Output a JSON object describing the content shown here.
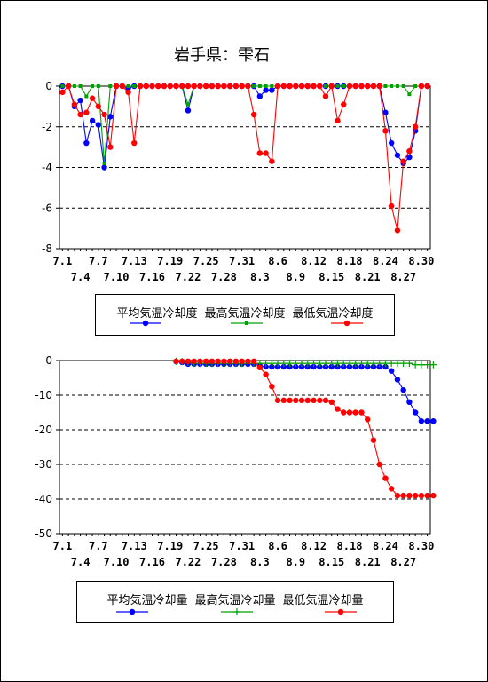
{
  "title": "岩手県：雫石",
  "chart_data": [
    {
      "type": "line",
      "title": "",
      "ylim": [
        -8,
        0
      ],
      "yticks": [
        0,
        -2,
        -4,
        -6,
        -8
      ],
      "grid": "dashed horizontal",
      "x_tick_labels_row1": [
        "7.1",
        "7.7",
        "7.13",
        "7.19",
        "7.25",
        "7.31",
        "8.6",
        "8.12",
        "8.18",
        "8.24",
        "8.30"
      ],
      "x_tick_labels_row2": [
        "7.4",
        "7.10",
        "7.16",
        "7.22",
        "7.28",
        "8.3",
        "8.9",
        "8.15",
        "8.21",
        "8.27"
      ],
      "legend_position": "bottom",
      "series": [
        {
          "name": "平均気温冷却度",
          "color": "#0000ff",
          "marker": "circle",
          "values": [
            0,
            0,
            -1.0,
            -0.7,
            -2.8,
            -1.7,
            -1.9,
            -4.0,
            -1.5,
            0,
            0,
            -0.1,
            0,
            0,
            0,
            0,
            0,
            0,
            0,
            0,
            0,
            -1.2,
            0,
            0,
            0,
            0,
            0,
            0,
            0,
            0,
            0,
            0,
            0,
            -0.5,
            -0.2,
            -0.2,
            0,
            0,
            0,
            0,
            0,
            0,
            0,
            0,
            0,
            0,
            0,
            0,
            0,
            0,
            0,
            0,
            0,
            0,
            -1.3,
            -2.8,
            -3.4,
            -3.8,
            -3.5,
            -2.2,
            0,
            0
          ]
        },
        {
          "name": "最高気温冷却度",
          "color": "#00a000",
          "marker": "square",
          "values": [
            0,
            0,
            0,
            0,
            -0.5,
            0,
            0,
            -3.8,
            0,
            0,
            0,
            0,
            0,
            0,
            0,
            0,
            0,
            0,
            0,
            0,
            0,
            -0.9,
            0,
            0,
            0,
            0,
            0,
            0,
            0,
            0,
            0,
            0,
            0,
            0,
            0,
            0,
            0,
            0,
            0,
            0,
            0,
            0,
            0,
            0,
            0,
            0,
            0,
            0,
            0,
            0,
            0,
            0,
            0,
            0,
            0,
            0,
            0,
            0,
            -0.4,
            0,
            0,
            0
          ]
        },
        {
          "name": "最低気温冷却度",
          "color": "#ff0000",
          "marker": "circle",
          "values": [
            -0.3,
            0,
            -0.9,
            -1.4,
            -1.3,
            -0.6,
            -1.0,
            -1.4,
            -3.0,
            0,
            0,
            -0.3,
            -2.8,
            0,
            0,
            0,
            0,
            0,
            0,
            0,
            0,
            0,
            0,
            0,
            0,
            0,
            0,
            0,
            0,
            0,
            0,
            0,
            -1.4,
            -3.3,
            -3.3,
            -3.7,
            0,
            0,
            0,
            0,
            0,
            0,
            0,
            0,
            -0.5,
            0,
            -1.7,
            -0.9,
            0,
            0,
            0,
            0,
            0,
            0,
            -2.2,
            -5.9,
            -7.1,
            -3.7,
            -3.2,
            -2.0,
            0,
            0
          ]
        }
      ]
    },
    {
      "type": "line",
      "title": "",
      "ylim": [
        -50,
        0
      ],
      "yticks": [
        0,
        -10,
        -20,
        -30,
        -40,
        -50
      ],
      "grid": "dashed horizontal",
      "x_tick_labels_row1": [
        "7.1",
        "7.7",
        "7.13",
        "7.19",
        "7.25",
        "7.31",
        "8.6",
        "8.12",
        "8.18",
        "8.24",
        "8.30"
      ],
      "x_tick_labels_row2": [
        "7.4",
        "7.10",
        "7.16",
        "7.22",
        "7.28",
        "8.3",
        "8.9",
        "8.15",
        "8.21",
        "8.27"
      ],
      "legend_position": "bottom",
      "series": [
        {
          "name": "平均気温冷却量",
          "color": "#0000ff",
          "marker": "circle",
          "start_index": 19,
          "values": [
            -0.3,
            -0.5,
            -1.0,
            -1.0,
            -1.0,
            -1.0,
            -1.0,
            -1.0,
            -1.0,
            -1.0,
            -1.0,
            -1.0,
            -1.0,
            -1.0,
            -1.5,
            -1.8,
            -1.8,
            -1.8,
            -1.8,
            -1.8,
            -1.8,
            -1.8,
            -1.8,
            -1.8,
            -1.8,
            -1.8,
            -1.8,
            -1.8,
            -1.8,
            -1.8,
            -1.8,
            -1.8,
            -1.8,
            -1.8,
            -1.8,
            -1.8,
            -3.0,
            -5.5,
            -8.5,
            -12.0,
            -15.0,
            -17.5,
            -17.5,
            -17.5
          ]
        },
        {
          "name": "最高気温冷却量",
          "color": "#00a000",
          "marker": "plus",
          "start_index": 19,
          "values": [
            -0.2,
            -0.3,
            -0.5,
            -0.8,
            -0.8,
            -0.8,
            -0.8,
            -0.8,
            -0.8,
            -0.8,
            -0.8,
            -0.8,
            -0.8,
            -0.8,
            -0.8,
            -0.8,
            -0.8,
            -0.8,
            -0.8,
            -0.8,
            -0.8,
            -0.8,
            -0.8,
            -0.8,
            -0.8,
            -0.8,
            -0.8,
            -0.8,
            -0.8,
            -0.8,
            -0.8,
            -0.8,
            -0.8,
            -0.8,
            -0.8,
            -0.8,
            -0.8,
            -0.8,
            -0.8,
            -0.8,
            -1.2,
            -1.2,
            -1.2,
            -1.2
          ]
        },
        {
          "name": "最低気温冷却量",
          "color": "#ff0000",
          "marker": "circle",
          "start_index": 19,
          "values": [
            -0.2,
            -0.2,
            -0.2,
            -0.2,
            -0.2,
            -0.2,
            -0.2,
            -0.2,
            -0.2,
            -0.2,
            -0.2,
            -0.2,
            -0.2,
            -0.2,
            -2.0,
            -4.0,
            -7.5,
            -11.5,
            -11.5,
            -11.5,
            -11.5,
            -11.5,
            -11.5,
            -11.5,
            -11.5,
            -11.5,
            -12.0,
            -14.0,
            -15.0,
            -15.0,
            -15.0,
            -15.0,
            -17.0,
            -23.0,
            -30.0,
            -34.0,
            -37.0,
            -39.0,
            -39.0,
            -39.0,
            -39.0,
            -39.0,
            -39.0,
            -39.0
          ]
        }
      ]
    }
  ]
}
